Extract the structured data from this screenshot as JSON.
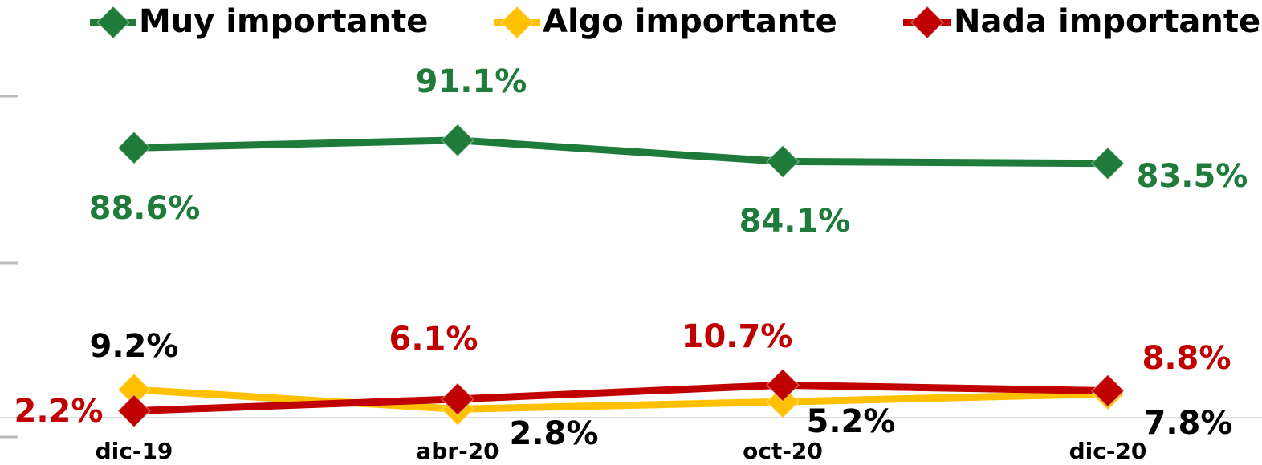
{
  "chart_data": {
    "type": "line",
    "categories": [
      "dic-19",
      "abr-20",
      "oct-20",
      "dic-20"
    ],
    "series": [
      {
        "name": "Muy importante",
        "color": "#1e7b3a",
        "values": [
          88.6,
          91.1,
          84.1,
          83.5
        ],
        "value_labels": [
          "88.6%",
          "91.1%",
          "84.1%",
          "83.5%"
        ]
      },
      {
        "name": "Algo importante",
        "color": "#ffc000",
        "values": [
          9.2,
          2.8,
          5.2,
          7.8
        ],
        "value_labels": [
          "9.2%",
          "2.8%",
          "5.2%",
          "7.8%"
        ]
      },
      {
        "name": "Nada importante",
        "color": "#c00000",
        "values": [
          2.2,
          6.1,
          10.7,
          8.8
        ],
        "value_labels": [
          "2.2%",
          "6.1%",
          "10.7%",
          "8.8%"
        ]
      }
    ],
    "ylim": [
      0,
      100
    ],
    "legend": "top"
  }
}
